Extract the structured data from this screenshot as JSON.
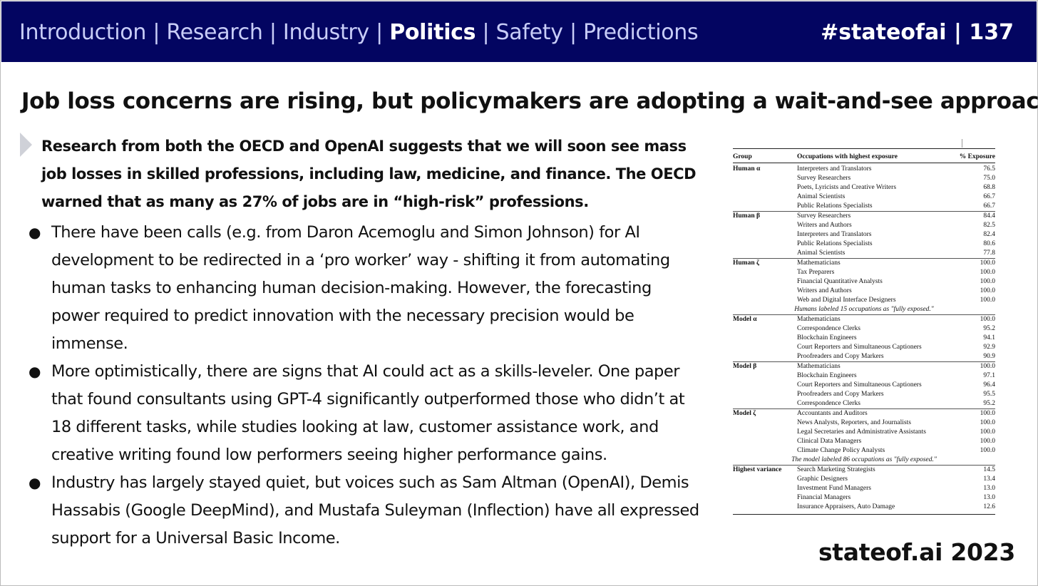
{
  "nav": {
    "items": [
      {
        "label": "Introduction",
        "active": false
      },
      {
        "label": "Research",
        "active": false
      },
      {
        "label": "Industry",
        "active": false
      },
      {
        "label": "Politics",
        "active": true
      },
      {
        "label": "Safety",
        "active": false
      },
      {
        "label": "Predictions",
        "active": false
      }
    ],
    "separator": "|",
    "page_label": "#stateofai | 137"
  },
  "title": "Job loss concerns are rising, but policymakers are adopting a wait-and-see approach",
  "lead": "Research from both the OECD and OpenAI suggests that we will soon see mass job losses in skilled professions, including law, medicine, and finance. The OECD warned that as many as 27% of jobs are in “high-risk” professions.",
  "bullets": [
    "There have been calls (e.g. from Daron Acemoglu and Simon Johnson) for AI development to be redirected in a ‘pro worker’ way - shifting it from automating human tasks to enhancing human decision-making. However, the forecasting power required to predict innovation with the necessary precision would be immense.",
    "More optimistically, there are signs that AI could act as a skills-leveler. One paper that found consultants using GPT-4 significantly outperformed those who didn’t at 18 different tasks, while studies looking at law, customer assistance work, and creative writing found low performers seeing higher performance gains.",
    "Industry has largely stayed quiet, but voices such as Sam Altman (OpenAI), Demis Hassabis (Google DeepMind), and Mustafa Suleyman (Inflection) have all expressed support for a Universal Basic Income."
  ],
  "bullet_glyph": "●",
  "table": {
    "headers": [
      "Group",
      "Occupations with highest exposure",
      "% Exposure"
    ],
    "groups": [
      {
        "name": "Human α",
        "rows": [
          [
            "Interpreters and Translators",
            "76.5"
          ],
          [
            "Survey Researchers",
            "75.0"
          ],
          [
            "Poets, Lyricists and Creative Writers",
            "68.8"
          ],
          [
            "Animal Scientists",
            "66.7"
          ],
          [
            "Public Relations Specialists",
            "66.7"
          ]
        ]
      },
      {
        "name": "Human β",
        "rows": [
          [
            "Survey Researchers",
            "84.4"
          ],
          [
            "Writers and Authors",
            "82.5"
          ],
          [
            "Interpreters and Translators",
            "82.4"
          ],
          [
            "Public Relations Specialists",
            "80.6"
          ],
          [
            "Animal Scientists",
            "77.8"
          ]
        ]
      },
      {
        "name": "Human ζ",
        "rows": [
          [
            "Mathematicians",
            "100.0"
          ],
          [
            "Tax Preparers",
            "100.0"
          ],
          [
            "Financial Quantitative Analysts",
            "100.0"
          ],
          [
            "Writers and Authors",
            "100.0"
          ],
          [
            "Web and Digital Interface Designers",
            "100.0"
          ]
        ],
        "note": "Humans labeled 15 occupations as \"fully exposed.\""
      },
      {
        "name": "Model α",
        "rows": [
          [
            "Mathematicians",
            "100.0"
          ],
          [
            "Correspondence Clerks",
            "95.2"
          ],
          [
            "Blockchain Engineers",
            "94.1"
          ],
          [
            "Court Reporters and Simultaneous Captioners",
            "92.9"
          ],
          [
            "Proofreaders and Copy Markers",
            "90.9"
          ]
        ]
      },
      {
        "name": "Model β",
        "rows": [
          [
            "Mathematicians",
            "100.0"
          ],
          [
            "Blockchain Engineers",
            "97.1"
          ],
          [
            "Court Reporters and Simultaneous Captioners",
            "96.4"
          ],
          [
            "Proofreaders and Copy Markers",
            "95.5"
          ],
          [
            "Correspondence Clerks",
            "95.2"
          ]
        ]
      },
      {
        "name": "Model ζ",
        "rows": [
          [
            "Accountants and Auditors",
            "100.0"
          ],
          [
            "News Analysts, Reporters, and Journalists",
            "100.0"
          ],
          [
            "Legal Secretaries and Administrative Assistants",
            "100.0"
          ],
          [
            "Clinical Data Managers",
            "100.0"
          ],
          [
            "Climate Change Policy Analysts",
            "100.0"
          ]
        ],
        "note": "The model labeled 86 occupations as \"fully exposed.\""
      },
      {
        "name": "Highest variance",
        "rows": [
          [
            "Search Marketing Strategists",
            "14.5"
          ],
          [
            "Graphic Designers",
            "13.4"
          ],
          [
            "Investment Fund Managers",
            "13.0"
          ],
          [
            "Financial Managers",
            "13.0"
          ],
          [
            "Insurance Appraisers, Auto Damage",
            "12.6"
          ]
        ]
      }
    ]
  },
  "footer": "stateof.ai 2023",
  "colors": {
    "topbar": "#030561",
    "nav_text": "#c8cdf7",
    "nav_active": "#ffffff"
  }
}
